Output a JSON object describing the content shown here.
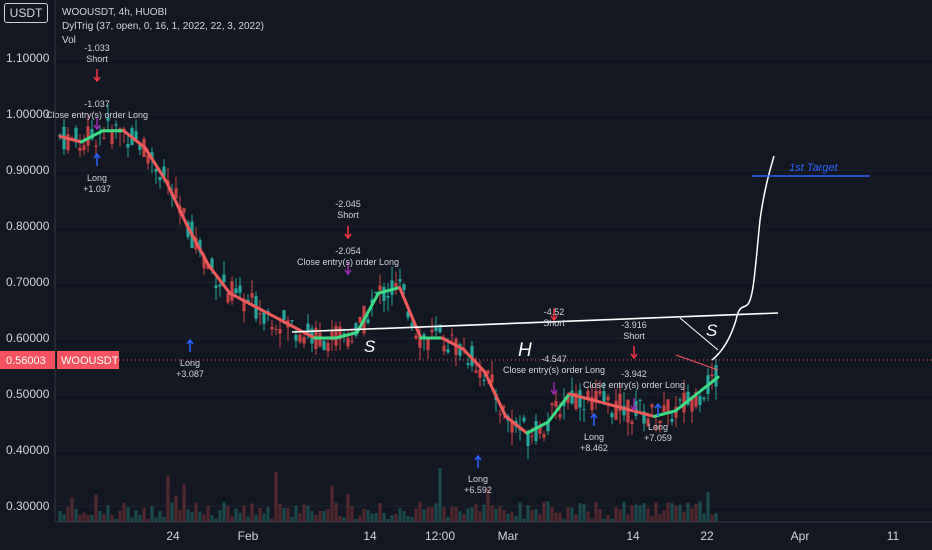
{
  "header": {
    "currency": "USDT",
    "symbol_line": "WOOUSDT, 4h, HUOBI",
    "indicator_line": "DylTrig (37, open, 0, 16, 1, 2022, 22, 3, 2022)",
    "volume_label": "Vol"
  },
  "price_badge": {
    "value": "0.56003",
    "symbol": "WOOUSDT"
  },
  "colors": {
    "background": "#131722",
    "ma_down": "#f05a5a",
    "ma_up": "#3ddc84",
    "candle_up": "#26a69a",
    "candle_down": "#c74343",
    "target": "#2962ff",
    "long_arrow": "#2962ff",
    "short_arrow": "#f23645",
    "close_arrow": "#9c27b0",
    "price_badge": "#f7525f"
  },
  "chart_data": {
    "type": "line",
    "y_axis_ticks": [
      "0.30000",
      "0.40000",
      "0.50000",
      "0.60000",
      "0.70000",
      "0.80000",
      "0.90000",
      "1.00000",
      "1.10000"
    ],
    "x_axis_ticks": [
      "24",
      "Feb",
      "14",
      "12:00",
      "Mar",
      "14",
      "22",
      "Apr",
      "11"
    ],
    "ylim": [
      0.27,
      1.2
    ],
    "series": [
      {
        "values": [
          0.96,
          0.95,
          0.97,
          0.97,
          0.94,
          0.88,
          0.8,
          0.73,
          0.68,
          0.66,
          0.64,
          0.62,
          0.6,
          0.6,
          0.61,
          0.68,
          0.69,
          0.6,
          0.6,
          0.58,
          0.54,
          0.46,
          0.43,
          0.45,
          0.5,
          0.49,
          0.48,
          0.47,
          0.46,
          0.47,
          0.5,
          0.53
        ]
      }
    ],
    "markers": [
      {
        "kind": "long",
        "label": "Long",
        "value": "+1.037"
      },
      {
        "kind": "close",
        "label": "Close entry(s) order Long",
        "value": "-1.037"
      },
      {
        "kind": "short",
        "label": "Short",
        "value": "-1.033"
      },
      {
        "kind": "long",
        "label": "Long",
        "value": "+3.087"
      },
      {
        "kind": "short",
        "label": "Short",
        "value": "-2.045"
      },
      {
        "kind": "close",
        "label": "Close entry(s) order Long",
        "value": "-2.054"
      },
      {
        "kind": "long",
        "label": "Long",
        "value": "+6.592"
      },
      {
        "kind": "short",
        "label": "Short",
        "value": "-4.52"
      },
      {
        "kind": "close",
        "label": "Close entry(s) order Long",
        "value": "-4.547"
      },
      {
        "kind": "long",
        "label": "Long",
        "value": "+8.462"
      },
      {
        "kind": "short",
        "label": "Short",
        "value": "-3.916"
      },
      {
        "kind": "close",
        "label": "Close entry(s) order Long",
        "value": "-3.942"
      },
      {
        "kind": "long",
        "label": "Long",
        "value": "+7.059"
      }
    ],
    "annotations": {
      "pattern_labels": [
        "S",
        "H",
        "S"
      ],
      "target_label": "1st Target"
    }
  }
}
